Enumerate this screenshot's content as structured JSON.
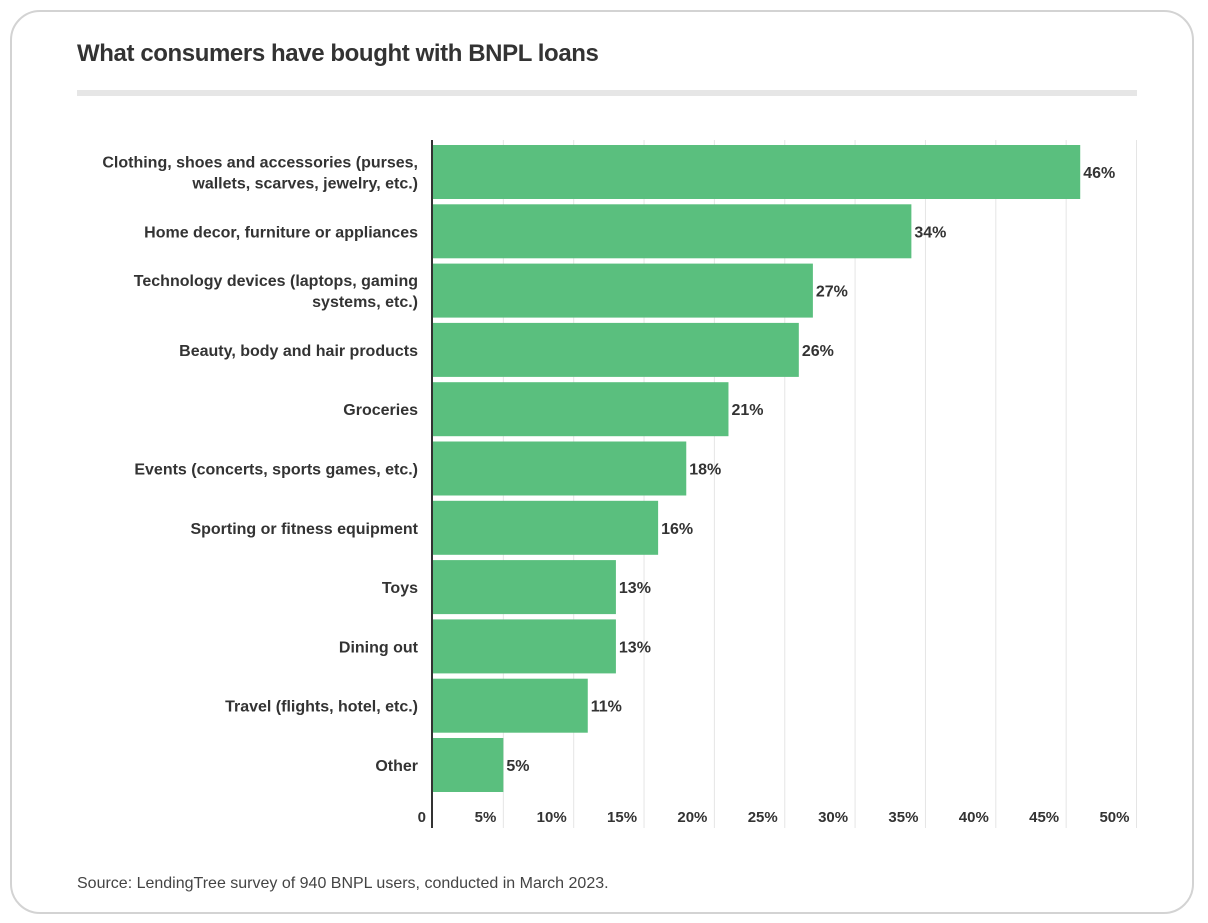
{
  "title": "What consumers have bought with BNPL loans",
  "source": "Source: LendingTree survey of 940 BNPL users, conducted in March 2023.",
  "colors": {
    "bar": "#5abf7e",
    "axis": "#333333",
    "grid": "#e5e5e5",
    "text": "#333333"
  },
  "chart_data": {
    "type": "bar",
    "orientation": "horizontal",
    "title": "What consumers have bought with BNPL loans",
    "categories": [
      [
        "Clothing, shoes and accessories (purses,",
        "wallets, scarves, jewelry, etc.)"
      ],
      [
        "Home decor, furniture or appliances"
      ],
      [
        "Technology devices (laptops, gaming",
        "systems, etc.)"
      ],
      [
        "Beauty, body and hair products"
      ],
      [
        "Groceries"
      ],
      [
        "Events (concerts, sports games, etc.)"
      ],
      [
        "Sporting or fitness equipment"
      ],
      [
        "Toys"
      ],
      [
        "Dining out"
      ],
      [
        "Travel (flights, hotel, etc.)"
      ],
      [
        "Other"
      ]
    ],
    "values": [
      46,
      34,
      27,
      26,
      21,
      18,
      16,
      13,
      13,
      11,
      5
    ],
    "value_labels": [
      "46%",
      "34%",
      "27%",
      "26%",
      "21%",
      "18%",
      "16%",
      "13%",
      "13%",
      "11%",
      "5%"
    ],
    "xlim": [
      0,
      50
    ],
    "xticks": [
      0,
      5,
      10,
      15,
      20,
      25,
      30,
      35,
      40,
      45,
      50
    ],
    "xtick_labels": [
      "0",
      "5%",
      "10%",
      "15%",
      "20%",
      "25%",
      "30%",
      "35%",
      "40%",
      "45%",
      "50%"
    ],
    "grid": true,
    "legend": "none"
  }
}
